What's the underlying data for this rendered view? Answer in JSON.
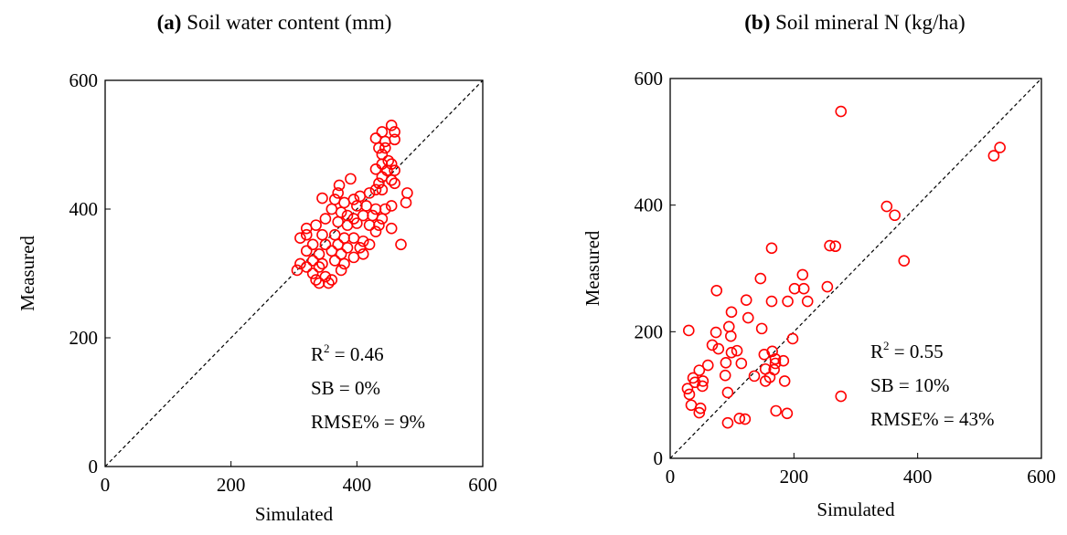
{
  "chart_data": [
    {
      "type": "scatter",
      "title_label": "(a)",
      "title": "Soil water content (mm)",
      "xlabel": "Simulated",
      "ylabel": "Measured",
      "xlim": [
        0,
        600
      ],
      "ylim": [
        0,
        600
      ],
      "xticks": [
        0,
        200,
        400,
        600
      ],
      "yticks": [
        0,
        200,
        400,
        600
      ],
      "color": "#ff0000",
      "annotations": [
        {
          "text": "R",
          "sup": "2",
          "rest": " = 0.46"
        },
        {
          "text": "SB = 0%"
        },
        {
          "text": "RMSE% = 9%"
        }
      ],
      "x": [
        455,
        440,
        460,
        430,
        445,
        460,
        435,
        445,
        440,
        450,
        455,
        440,
        430,
        448,
        460,
        440,
        455,
        435,
        460,
        390,
        372,
        370,
        440,
        430,
        420,
        480,
        478,
        455,
        345,
        365,
        395,
        405,
        380,
        400,
        415,
        430,
        445,
        360,
        375,
        385,
        395,
        410,
        425,
        440,
        350,
        370,
        385,
        400,
        420,
        435,
        455,
        470,
        320,
        335,
        320,
        310,
        345,
        365,
        380,
        395,
        410,
        430,
        330,
        350,
        370,
        385,
        405,
        420,
        320,
        340,
        360,
        375,
        395,
        410,
        330,
        345,
        365,
        380,
        310,
        320,
        340,
        305,
        330,
        350,
        375,
        335,
        355,
        340,
        360
      ],
      "y": [
        530,
        520,
        520,
        510,
        505,
        508,
        495,
        495,
        485,
        475,
        470,
        470,
        462,
        460,
        460,
        450,
        445,
        440,
        440,
        447,
        437,
        425,
        430,
        430,
        425,
        425,
        410,
        405,
        417,
        415,
        415,
        420,
        410,
        405,
        405,
        400,
        400,
        400,
        395,
        390,
        385,
        390,
        390,
        385,
        385,
        380,
        375,
        378,
        375,
        375,
        370,
        345,
        370,
        375,
        360,
        355,
        360,
        360,
        355,
        355,
        350,
        365,
        345,
        345,
        345,
        340,
        340,
        345,
        335,
        330,
        335,
        330,
        325,
        330,
        320,
        315,
        320,
        315,
        315,
        310,
        310,
        305,
        300,
        295,
        305,
        290,
        285,
        285,
        290
      ]
    },
    {
      "type": "scatter",
      "title_label": "(b)",
      "title": "Soil mineral N (kg/ha)",
      "xlabel": "Simulated",
      "ylabel": "Measured",
      "xlim": [
        0,
        600
      ],
      "ylim": [
        0,
        600
      ],
      "xticks": [
        0,
        200,
        400,
        600
      ],
      "yticks": [
        0,
        200,
        400,
        600
      ],
      "color": "#ff0000",
      "annotations": [
        {
          "text": "R",
          "sup": "2",
          "rest": " = 0.55"
        },
        {
          "text": "SB = 10%"
        },
        {
          "text": "RMSE% = 43%"
        }
      ],
      "x": [
        276,
        533,
        523,
        350,
        363,
        378,
        164,
        214,
        146,
        258,
        267,
        254,
        201,
        216,
        190,
        164,
        222,
        123,
        75,
        99,
        126,
        148,
        95,
        98,
        30,
        68,
        78,
        108,
        74,
        99,
        198,
        165,
        170,
        183,
        152,
        168,
        154,
        90,
        170,
        161,
        136,
        154,
        185,
        61,
        89,
        47,
        37,
        53,
        28,
        40,
        31,
        52,
        34,
        49,
        47,
        93,
        93,
        112,
        121,
        171,
        189,
        276,
        115
      ],
      "y": [
        548,
        491,
        478,
        398,
        384,
        312,
        332,
        290,
        284,
        336,
        335,
        271,
        268,
        268,
        248,
        248,
        248,
        250,
        265,
        231,
        222,
        205,
        208,
        193,
        202,
        179,
        173,
        170,
        199,
        167,
        189,
        169,
        157,
        154,
        164,
        140,
        141,
        151,
        150,
        128,
        130,
        122,
        122,
        147,
        131,
        139,
        127,
        122,
        110,
        120,
        101,
        114,
        84,
        79,
        72,
        104,
        56,
        63,
        62,
        75,
        71,
        98,
        150
      ]
    }
  ]
}
